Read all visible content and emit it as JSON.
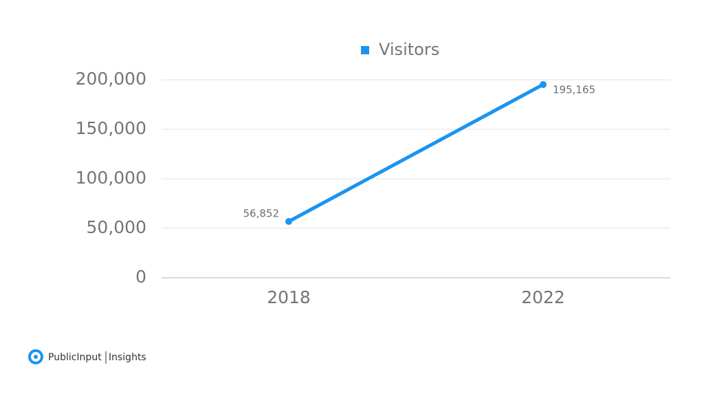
{
  "chart_data": {
    "type": "line",
    "categories": [
      "2018",
      "2022"
    ],
    "series": [
      {
        "name": "Visitors",
        "color": "#1a94f0",
        "values": [
          56852,
          195165
        ],
        "value_labels": [
          "56,852",
          "195,165"
        ]
      }
    ],
    "ylim": [
      0,
      200000
    ],
    "yticks": [
      0,
      {
        "value": 50000,
        "label": "50,000"
      },
      {
        "value": 100000,
        "label": "100,000"
      },
      {
        "value": 150000,
        "label": "150,000"
      },
      {
        "value": 200000,
        "label": "200,000"
      }
    ],
    "grid": true,
    "legend": "top"
  },
  "logo": {
    "name": "PublicInput",
    "product": "Insights"
  }
}
